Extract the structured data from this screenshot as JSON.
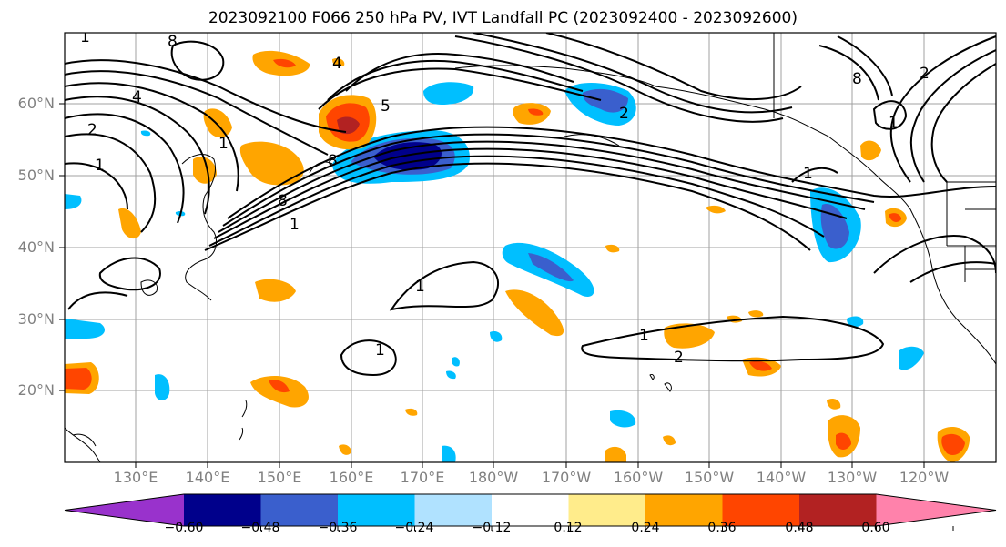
{
  "title": "2023092100 F066 250 hPa PV, IVT Landfall PC (2023092400 - 2023092600)",
  "lat_labels": [
    "60°N",
    "50°N",
    "40°N",
    "30°N",
    "20°N"
  ],
  "lon_labels": [
    "130°E",
    "140°E",
    "150°E",
    "160°E",
    "170°E",
    "180°W",
    "170°W",
    "160°W",
    "150°W",
    "140°W",
    "130°W",
    "120°W"
  ],
  "colorbar": {
    "tick_labels": [
      "−0.60",
      "−0.48",
      "−0.36",
      "−0.24",
      "−0.12",
      "0.12",
      "0.24",
      "0.36",
      "0.48",
      "0.60"
    ],
    "colors": [
      "#9932cc",
      "#00008b",
      "#3a5fcd",
      "#00bfff",
      "#b0e2ff",
      "#ffffff",
      "#ffec8b",
      "#ffa500",
      "#ff4500",
      "#b22222",
      "#ff82ab"
    ]
  },
  "contour_labels": [
    "8",
    "1",
    "2",
    "4",
    "1",
    "8",
    "1",
    "5",
    "4",
    "8",
    "1",
    "1",
    "1",
    "2",
    "1",
    "1",
    "2",
    "1",
    "8",
    "2"
  ]
}
